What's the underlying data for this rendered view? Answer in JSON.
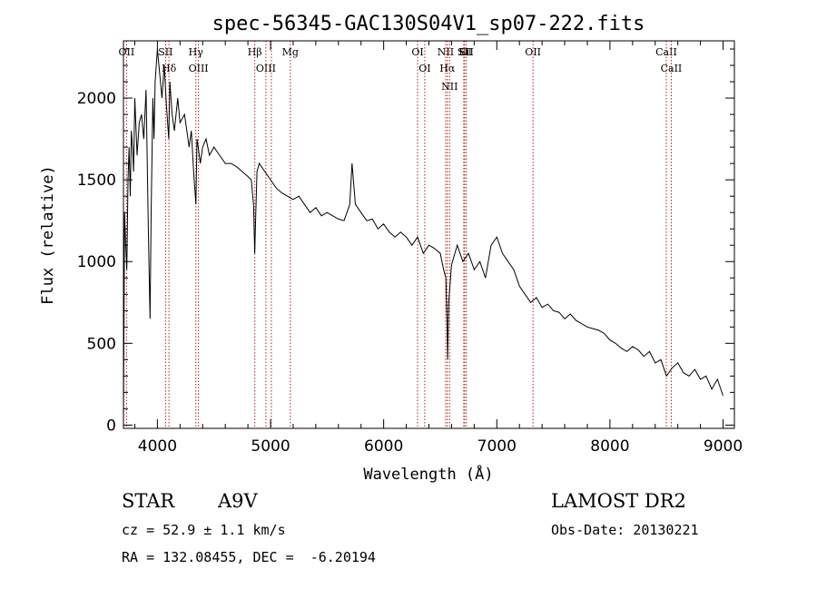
{
  "chart_data": {
    "type": "line",
    "title": "spec-56345-GAC130S04V1_sp07-222.fits",
    "xlabel": "Wavelength (Å)",
    "ylabel": "Flux (relative)",
    "xlim": [
      3700,
      9100
    ],
    "ylim": [
      -20,
      2350
    ],
    "xticks": [
      4000,
      5000,
      6000,
      7000,
      8000,
      9000
    ],
    "yticks": [
      0,
      500,
      1000,
      1500,
      2000
    ],
    "line_color": "#000000",
    "marker_color": "#b22222",
    "series": [
      {
        "x": [
          3700,
          3710,
          3720,
          3730,
          3740,
          3750,
          3760,
          3770,
          3780,
          3790,
          3800,
          3820,
          3840,
          3860,
          3880,
          3900,
          3920,
          3935,
          3945,
          3960,
          3970,
          3980,
          4000,
          4020,
          4040,
          4060,
          4080,
          4100,
          4110,
          4130,
          4150,
          4180,
          4200,
          4240,
          4280,
          4300,
          4320,
          4340,
          4350,
          4360,
          4380,
          4400,
          4430,
          4460,
          4500,
          4550,
          4600,
          4650,
          4700,
          4750,
          4800,
          4830,
          4850,
          4860,
          4870,
          4880,
          4900,
          4950,
          5000,
          5050,
          5100,
          5150,
          5200,
          5250,
          5300,
          5350,
          5400,
          5450,
          5500,
          5550,
          5600,
          5650,
          5700,
          5720,
          5750,
          5800,
          5850,
          5900,
          5950,
          6000,
          6050,
          6100,
          6150,
          6200,
          6250,
          6300,
          6350,
          6400,
          6450,
          6500,
          6530,
          6550,
          6560,
          6565,
          6575,
          6600,
          6650,
          6700,
          6750,
          6800,
          6850,
          6900,
          6950,
          7000,
          7050,
          7100,
          7150,
          7200,
          7250,
          7300,
          7350,
          7400,
          7450,
          7500,
          7550,
          7600,
          7650,
          7700,
          7750,
          7800,
          7850,
          7900,
          7950,
          8000,
          8050,
          8100,
          8150,
          8200,
          8250,
          8300,
          8350,
          8400,
          8450,
          8500,
          8550,
          8600,
          8650,
          8700,
          8750,
          8800,
          8850,
          8900,
          8950,
          9000
        ],
        "y": [
          0,
          1300,
          1100,
          950,
          1500,
          1700,
          1400,
          1800,
          1700,
          1550,
          2000,
          1650,
          1850,
          1900,
          1750,
          2050,
          1200,
          650,
          1300,
          2000,
          1750,
          2100,
          2300,
          2150,
          2000,
          2200,
          1950,
          1750,
          2100,
          1900,
          1800,
          2000,
          1850,
          1900,
          1700,
          1800,
          1550,
          1350,
          1750,
          1700,
          1600,
          1700,
          1750,
          1650,
          1700,
          1650,
          1600,
          1600,
          1580,
          1550,
          1520,
          1500,
          1350,
          1050,
          1300,
          1550,
          1600,
          1550,
          1500,
          1450,
          1420,
          1400,
          1380,
          1400,
          1350,
          1300,
          1330,
          1280,
          1300,
          1280,
          1260,
          1250,
          1350,
          1600,
          1350,
          1300,
          1250,
          1260,
          1200,
          1230,
          1180,
          1150,
          1180,
          1150,
          1100,
          1150,
          1050,
          1100,
          1080,
          1050,
          950,
          900,
          650,
          400,
          750,
          980,
          1100,
          1000,
          1050,
          950,
          1000,
          900,
          1100,
          1150,
          1050,
          1000,
          950,
          850,
          800,
          750,
          780,
          720,
          740,
          700,
          690,
          650,
          680,
          640,
          620,
          600,
          590,
          580,
          560,
          520,
          500,
          470,
          450,
          480,
          460,
          420,
          450,
          380,
          400,
          300,
          350,
          380,
          320,
          300,
          340,
          280,
          300,
          220,
          280,
          180
        ]
      }
    ],
    "lines": [
      {
        "wavelength": 3727,
        "label": "OII"
      },
      {
        "wavelength": 4072,
        "label": "SII"
      },
      {
        "wavelength": 4102,
        "label": "Hδ"
      },
      {
        "wavelength": 4340,
        "label": "Hγ"
      },
      {
        "wavelength": 4363,
        "label": "OIII"
      },
      {
        "wavelength": 4861,
        "label": "Hβ"
      },
      {
        "wavelength": 4959,
        "label": "OIII"
      },
      {
        "wavelength": 5007,
        "label": ""
      },
      {
        "wavelength": 5175,
        "label": "Mg"
      },
      {
        "wavelength": 6300,
        "label": "OI"
      },
      {
        "wavelength": 6363,
        "label": "OI"
      },
      {
        "wavelength": 6548,
        "label": "NII"
      },
      {
        "wavelength": 6563,
        "label": "Hα"
      },
      {
        "wavelength": 6583,
        "label": "NII"
      },
      {
        "wavelength": 6708,
        "label": "Li"
      },
      {
        "wavelength": 6716,
        "label": "SII"
      },
      {
        "wavelength": 6731,
        "label": "SII"
      },
      {
        "wavelength": 7320,
        "label": "OII"
      },
      {
        "wavelength": 8498,
        "label": "CaII"
      },
      {
        "wavelength": 8542,
        "label": "CaII"
      }
    ]
  },
  "info": {
    "object_class": "STAR",
    "subclass": "A9V",
    "survey": "LAMOST DR2",
    "cz": "cz = 52.9 ± 1.1 km/s",
    "obs_date": "Obs-Date: 20130221",
    "coords": "RA = 132.08455, DEC =  -6.20194"
  }
}
